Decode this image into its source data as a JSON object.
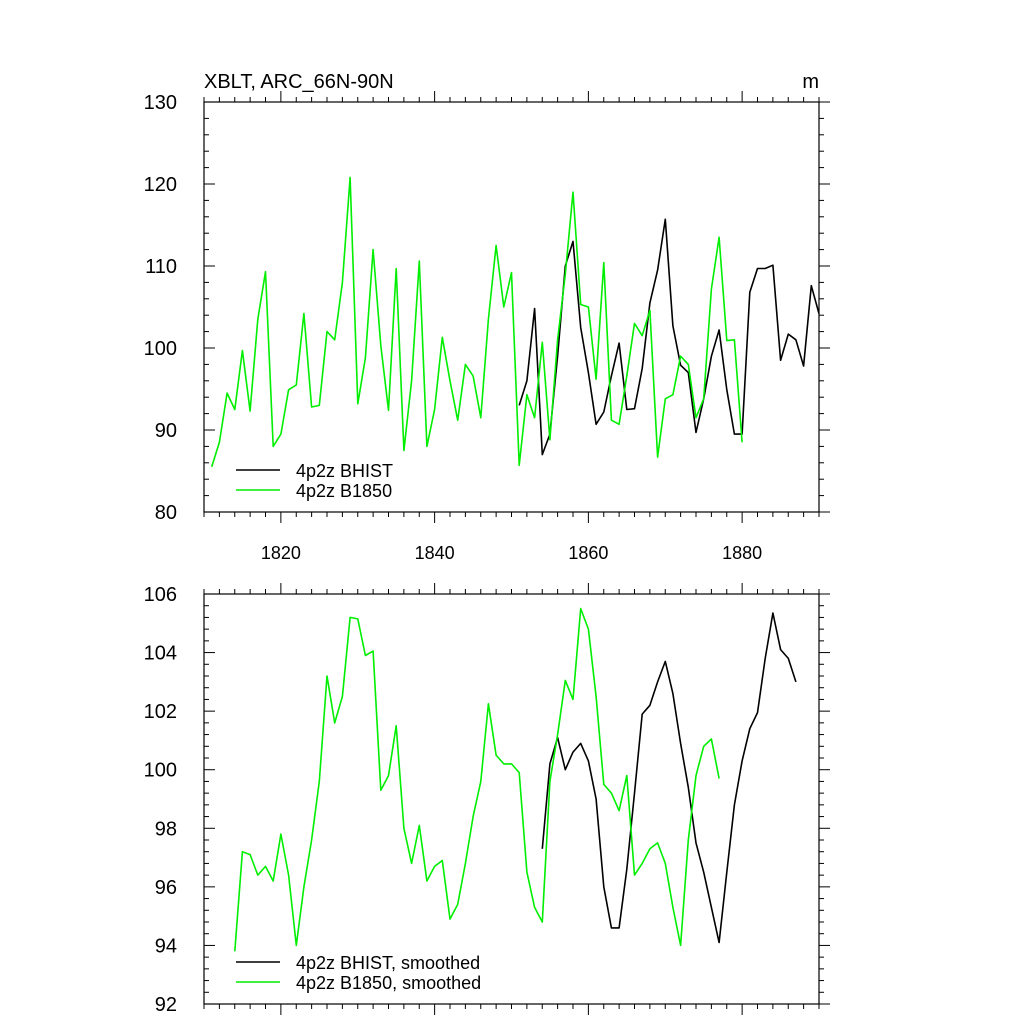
{
  "title_left": "XBLT, ARC_66N-90N",
  "title_right": "m",
  "colors": {
    "bhist": "#000000",
    "b1850": "#00ee00"
  },
  "chart_data": [
    {
      "type": "line",
      "name": "top-panel",
      "xlim": [
        1810,
        1890
      ],
      "ylim": [
        80,
        130
      ],
      "x_ticks": [
        1820,
        1840,
        1860,
        1880
      ],
      "x_tick_labels": [
        "1820",
        "1840",
        "1860",
        "1880"
      ],
      "y_ticks": [
        80,
        90,
        100,
        110,
        120,
        130
      ],
      "y_tick_labels": [
        "80",
        "90",
        "100",
        "110",
        "120",
        "130"
      ],
      "legend_position": "bottom-left",
      "series": [
        {
          "name": "4p2z BHIST",
          "color": "#000000",
          "x_start": 1851,
          "x_step": 1,
          "values": [
            93,
            96,
            104.8,
            87,
            89.5,
            99,
            110,
            113,
            102.5,
            97,
            90.7,
            92.2,
            96.6,
            100.6,
            92.5,
            92.6,
            97.5,
            105.5,
            109.5,
            115.7,
            102.7,
            97.9,
            97,
            89.7,
            93.8,
            99,
            102.2,
            94.9,
            89.5,
            89.5,
            106.8,
            109.7,
            109.7,
            110.1,
            98.5,
            101.7,
            101,
            97.8,
            107.6,
            104.2
          ]
        },
        {
          "name": "4p2z B1850",
          "color": "#00ee00",
          "x_start": 1811,
          "x_step": 1,
          "values": [
            85.5,
            88.5,
            94.5,
            92.5,
            99.7,
            92.3,
            103.5,
            109.3,
            88,
            89.5,
            94.9,
            95.5,
            104.2,
            92.8,
            93,
            102,
            101,
            108,
            120.8,
            93.2,
            98.8,
            112,
            100.3,
            92.4,
            109.7,
            87.5,
            96,
            110.6,
            88,
            92.5,
            101.3,
            96,
            91.2,
            98,
            96.6,
            91.5,
            103.5,
            112.5,
            105,
            109.2,
            85.7,
            94.3,
            91.5,
            100.7,
            88.8,
            101,
            109,
            119,
            105.3,
            105,
            96.2,
            110.4,
            91.2,
            90.7,
            96.6,
            103,
            101.5,
            104.6,
            86.7,
            93.8,
            94.3,
            99,
            98,
            91.5,
            93.8,
            107.2,
            113.5,
            100.9,
            101,
            88.5
          ]
        }
      ]
    },
    {
      "type": "line",
      "name": "bottom-panel",
      "xlim": [
        1810,
        1890
      ],
      "ylim": [
        92,
        106
      ],
      "x_ticks": [
        1820,
        1840,
        1860,
        1880
      ],
      "x_tick_labels": [],
      "y_ticks": [
        92,
        94,
        96,
        98,
        100,
        102,
        104,
        106
      ],
      "y_tick_labels": [
        "92",
        "94",
        "96",
        "98",
        "100",
        "102",
        "104",
        "106"
      ],
      "legend_position": "bottom-left",
      "series": [
        {
          "name": "4p2z BHIST, smoothed",
          "color": "#000000",
          "x_start": 1854,
          "x_step": 1,
          "values": [
            97.3,
            100.2,
            101.1,
            100,
            100.6,
            100.9,
            100.3,
            99,
            96,
            94.6,
            94.6,
            96.6,
            99.2,
            101.9,
            102.2,
            103,
            103.7,
            102.6,
            100.9,
            99.4,
            97.5,
            96.5,
            95.3,
            94.1,
            96.5,
            98.8,
            100.3,
            101.4,
            101.95,
            103.8,
            105.35,
            104.1,
            103.8,
            103
          ]
        },
        {
          "name": "4p2z B1850, smoothed",
          "color": "#00ee00",
          "x_start": 1814,
          "x_step": 1,
          "values": [
            93.8,
            97.2,
            97.1,
            96.4,
            96.7,
            96.2,
            97.8,
            96.4,
            94,
            96,
            97.6,
            99.6,
            103.2,
            101.6,
            102.5,
            105.2,
            105.15,
            103.9,
            104.05,
            99.3,
            99.8,
            101.5,
            98,
            96.8,
            98.1,
            96.2,
            96.7,
            96.9,
            94.9,
            95.4,
            96.8,
            98.4,
            99.6,
            102.25,
            100.5,
            100.2,
            100.2,
            99.9,
            96.5,
            95.3,
            94.8,
            99.6,
            101.2,
            103.05,
            102.4,
            105.5,
            104.8,
            102.5,
            99.5,
            99.2,
            98.6,
            99.8,
            96.4,
            96.8,
            97.3,
            97.5,
            96.8,
            95.3,
            94,
            97.6,
            99.8,
            100.8,
            101.05,
            99.7
          ]
        }
      ]
    }
  ]
}
